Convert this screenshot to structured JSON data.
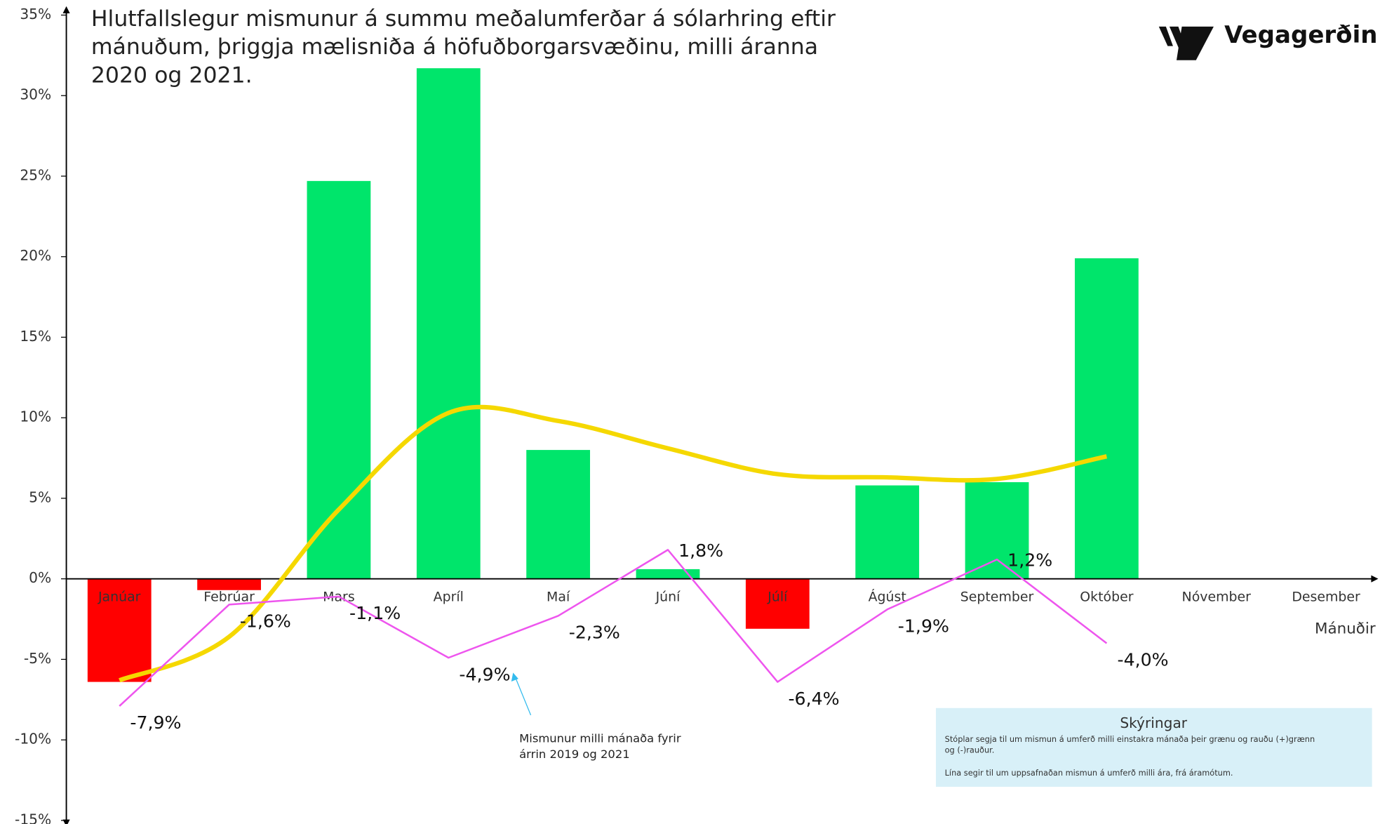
{
  "chart_data": {
    "type": "bar",
    "title": [
      "Hlutfallslegur mismunur á summu meðalumferðar á sólarhring eftir",
      "mánuðum, þriggja mælisniða á höfuðborgarsvæðinu, milli áranna",
      "2020 og 2021."
    ],
    "logo": "Vegagerðin",
    "x_label": "Mánuðir",
    "categories": [
      "Janúar",
      "Febrúar",
      "Mars",
      "Apríl",
      "Maí",
      "Júní",
      "Júlí",
      "Ágúst",
      "September",
      "Október",
      "Nóvember",
      "Desember"
    ],
    "values": [
      -6.4,
      -0.7,
      24.7,
      31.7,
      8.0,
      0.6,
      -3.1,
      5.8,
      6.0,
      19.9,
      null,
      null
    ],
    "positive_color": "#00e56b",
    "negative_color": "#ff0000",
    "lines": [
      {
        "color": "#f5d800",
        "smooth": true,
        "values": [
          -6.3,
          -3.6,
          4.3,
          10.3,
          9.8,
          8.1,
          6.5,
          6.3,
          6.2,
          7.6,
          null,
          null
        ]
      },
      {
        "color": "#ee55ee",
        "smooth": false,
        "values": [
          -7.9,
          -1.6,
          -1.1,
          -4.9,
          -2.3,
          1.8,
          -6.4,
          -1.9,
          1.2,
          -4.0,
          null,
          null
        ],
        "value_labels": [
          "-7,9%",
          "-1,6%",
          "-1,1%",
          "-4,9%",
          "-2,3%",
          "1,8%",
          "-6,4%",
          "-1,9%",
          "1,2%",
          "-4,0%",
          null,
          null
        ]
      }
    ],
    "ylim": [
      -15,
      35
    ],
    "yticks": [
      {
        "value": -15,
        "label": "-15%"
      },
      {
        "value": -10,
        "label": "-10%"
      },
      {
        "value": -5,
        "label": "-5%"
      },
      {
        "value": 0,
        "label": "0%"
      },
      {
        "value": 5,
        "label": "5%"
      },
      {
        "value": 10,
        "label": "10%"
      },
      {
        "value": 15,
        "label": "15%"
      },
      {
        "value": 20,
        "label": "20%"
      },
      {
        "value": 25,
        "label": "25%"
      },
      {
        "value": 30,
        "label": "30%"
      },
      {
        "value": 35,
        "label": "35%"
      }
    ],
    "annotation": [
      "Mismunur milli mánaða fyrir",
      "árrin 2019 og 2021"
    ],
    "legend_title": "Skýringar",
    "legend_notes": [
      "Stóplar segja til um mismun á umferð milli einstakra mánaða  þeir grænu og rauðu  (+)grænn",
      "og (-)rauður.",
      "Lína segir til um uppsafnaðan mismun á umferð milli ára, frá áramótum."
    ]
  }
}
